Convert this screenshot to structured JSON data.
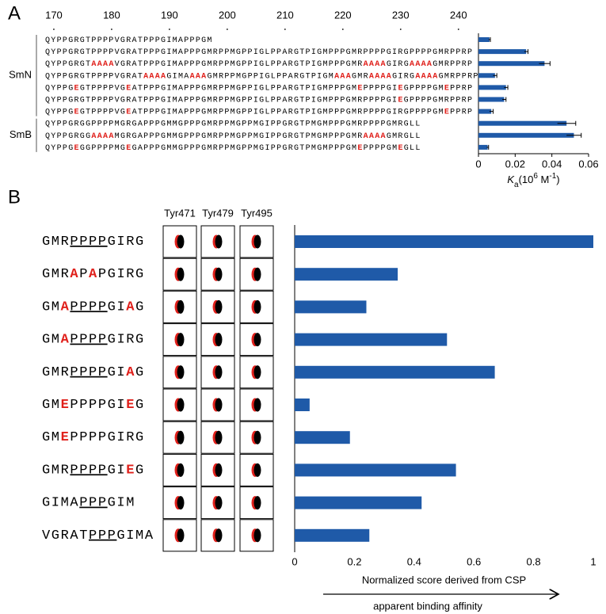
{
  "panel_labels": [
    "A",
    "B"
  ],
  "alignment": {
    "xlim": [
      168.5,
      242.5
    ],
    "ruler_ticks": [
      170,
      180,
      190,
      200,
      210,
      220,
      230,
      240
    ],
    "groups": [
      {
        "label": "SmN",
        "rows": [
          [
            "QYPPGRGTPPPPVGRATPPPGIMAPPPGM"
          ],
          [
            "QYPPGRGTPPPPVGRATPPPGIMAPPPGMRPPMGPPIGLPPARGTPIGMPPPGMRPPPPGIRGPPPPGMRPPRP"
          ],
          [
            "QYPPGRGT",
            {
              "text": "AAAA",
              "color": "#e0201b"
            },
            "VGRATPPPGIMAPPPGMRPPMGPPIGLPPARGTPIGMPPPGMR",
            {
              "text": "AAAA",
              "color": "#e0201b"
            },
            "GIRG",
            {
              "text": "AAAA",
              "color": "#e0201b"
            },
            "GMRPPRP"
          ],
          [
            "QYPPGRGTPPPPVGRAT",
            {
              "text": "AAAA",
              "color": "#e0201b"
            },
            "GIMA",
            {
              "text": "AAA",
              "color": "#e0201b"
            },
            "GMRPPMGPPIGLPPARGTPIGM",
            {
              "text": "AAA",
              "color": "#e0201b"
            },
            "GMR",
            {
              "text": "AAAA",
              "color": "#e0201b"
            },
            "GIRG",
            {
              "text": "AAAA",
              "color": "#e0201b"
            },
            "GMRPPRP"
          ],
          [
            "QYPPG",
            {
              "text": "E",
              "color": "#e0201b"
            },
            "GTPPPPVG",
            {
              "text": "E",
              "color": "#e0201b"
            },
            "ATPPPGIMAPPPGMRPPMGPPIGLPPARGTPIGMPPPGM",
            {
              "text": "E",
              "color": "#e0201b"
            },
            "PPPPGI",
            {
              "text": "E",
              "color": "#e0201b"
            },
            "GPPPPGM",
            {
              "text": "E",
              "color": "#e0201b"
            },
            "PPRP"
          ],
          [
            "QYPPGRGTPPPPVGRATPPPGIMAPPPGMRPPMGPPIGLPPARGTPIGMPPPGMRPPPPGI",
            {
              "text": "E",
              "color": "#e0201b"
            },
            "GPPPPGMRPPRP"
          ],
          [
            "QYPPG",
            {
              "text": "E",
              "color": "#e0201b"
            },
            "GTPPPPVG",
            {
              "text": "E",
              "color": "#e0201b"
            },
            "ATPPPGIMAPPPGMRPPMGPPIGLPPARGTPIGMPPPGMRPPPPGIRGPPPPGM",
            {
              "text": "E",
              "color": "#e0201b"
            },
            "PPRP"
          ]
        ]
      },
      {
        "label": "SmB",
        "rows": [
          [
            "QYPPGRGGPPPPMGRGAPPPGMMGPPPGMRPPMGPPMGIPPGRGTPMGMPPPGMRPPPPGMRGLL"
          ],
          [
            "QYPPGRGG",
            {
              "text": "AAAA",
              "color": "#e0201b"
            },
            "MGRGAPPPGMMGPPPGMRPPMGPPMGIPPGRGTPMGMPPPGMR",
            {
              "text": "AAAA",
              "color": "#e0201b"
            },
            "GMRGLL"
          ],
          [
            "QYPPG",
            {
              "text": "E",
              "color": "#e0201b"
            },
            "GGPPPPMG",
            {
              "text": "E",
              "color": "#e0201b"
            },
            "GAPPPGMMGPPPGMRPPMGPPMGIPPGRGTPMGMPPPGM",
            {
              "text": "E",
              "color": "#e0201b"
            },
            "PPPPGM",
            {
              "text": "E",
              "color": "#e0201b"
            },
            "GLL"
          ]
        ]
      }
    ]
  },
  "csp_columns": [
    "Tyr471",
    "Tyr479",
    "Tyr495"
  ],
  "chart_data": [
    {
      "type": "bar",
      "orientation": "horizontal",
      "color": "#1f5aa8",
      "values": [
        0.006,
        0.026,
        0.036,
        0.009,
        0.015,
        0.014,
        0.007,
        0.048,
        0.052,
        0.005
      ],
      "errors": [
        0.0005,
        0.001,
        0.003,
        0.001,
        0.001,
        0.001,
        0.001,
        0.005,
        0.004,
        0.0005
      ],
      "xlim": [
        0,
        0.06
      ],
      "xticks": [
        0,
        0.02,
        0.04,
        0.06
      ],
      "xlabel": [
        {
          "text": "K",
          "style": "italic"
        },
        {
          "text": "a",
          "style": "sub"
        },
        "(10",
        {
          "text": "6",
          "style": "sup"
        },
        " M",
        {
          "text": "-1",
          "style": "sup"
        },
        ")"
      ]
    },
    {
      "type": "bar",
      "orientation": "horizontal",
      "color": "#1f5aa8",
      "categories": [
        [
          "GMR",
          {
            "text": "PPPP",
            "underline": true
          },
          "GIRG"
        ],
        [
          "GMR",
          {
            "text": "A",
            "color": "#e0201b"
          },
          "P",
          {
            "text": "A",
            "color": "#e0201b"
          },
          "PGIRG"
        ],
        [
          "GM",
          {
            "text": "A",
            "color": "#e0201b"
          },
          {
            "text": "PPPP",
            "underline": true
          },
          "GI",
          {
            "text": "A",
            "color": "#e0201b"
          },
          "G"
        ],
        [
          "GM",
          {
            "text": "A",
            "color": "#e0201b"
          },
          {
            "text": "PPPP",
            "underline": true
          },
          "GIRG"
        ],
        [
          "GMR",
          {
            "text": "PPPP",
            "underline": true
          },
          "GI",
          {
            "text": "A",
            "color": "#e0201b"
          },
          "G"
        ],
        [
          "GM",
          {
            "text": "E",
            "color": "#e0201b"
          },
          "PPPPGI",
          {
            "text": "E",
            "color": "#e0201b"
          },
          "G"
        ],
        [
          "GM",
          {
            "text": "E",
            "color": "#e0201b"
          },
          "PPPPGIRG"
        ],
        [
          "GMR",
          {
            "text": "PPPP",
            "underline": true
          },
          "GI",
          {
            "text": "E",
            "color": "#e0201b"
          },
          "G"
        ],
        [
          "GIMA",
          {
            "text": "PPP",
            "underline": true
          },
          "GIM"
        ],
        [
          "VGRAT",
          {
            "text": "PPP",
            "underline": true
          },
          "GIMA"
        ]
      ],
      "values": [
        1,
        0.345,
        0.24,
        0.51,
        0.67,
        0.05,
        0.185,
        0.54,
        0.425,
        0.25
      ],
      "xlim": [
        0,
        1
      ],
      "xticks": [
        0,
        0.2,
        0.4,
        0.6,
        0.8,
        1
      ],
      "xlabel": "Normalized score derived from CSP",
      "annotation": "apparent binding affinity"
    }
  ]
}
